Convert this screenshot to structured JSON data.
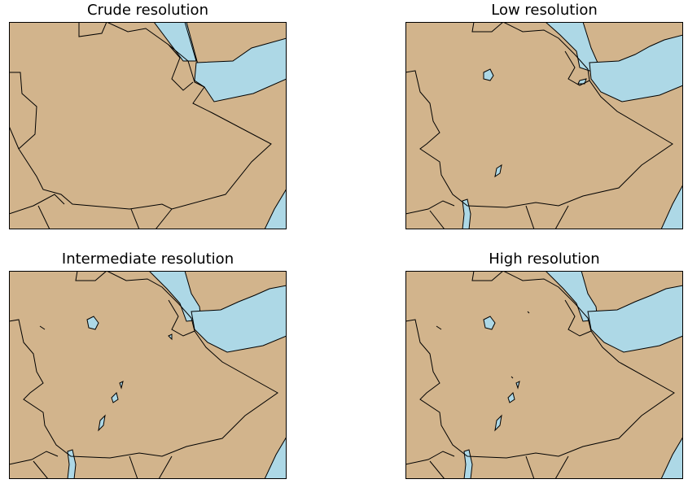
{
  "colors": {
    "land": "#d2b48c",
    "water": "#add8e6",
    "border": "#000000"
  },
  "panels": [
    {
      "title": "Crude resolution"
    },
    {
      "title": "Low resolution"
    },
    {
      "title": "Intermediate resolution"
    },
    {
      "title": "High resolution"
    }
  ]
}
